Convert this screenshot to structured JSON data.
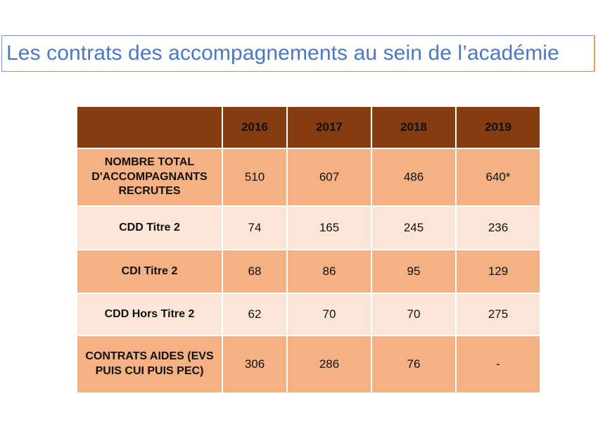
{
  "title": "Les contrats des accompagnements au sein de l’académie",
  "table": {
    "corner": "",
    "years": [
      "2016",
      "2017",
      "2018",
      "2019"
    ],
    "rows": [
      {
        "label": "NOMBRE TOTAL D'ACCOMPAGNANTS RECRUTES",
        "values": [
          "510",
          "607",
          "486",
          "640*"
        ],
        "shade": "dark"
      },
      {
        "label": "CDD Titre 2",
        "values": [
          "74",
          "165",
          "245",
          "236"
        ],
        "shade": "light"
      },
      {
        "label": "CDI Titre 2",
        "values": [
          "68",
          "86",
          "95",
          "129"
        ],
        "shade": "dark"
      },
      {
        "label": "CDD Hors Titre 2",
        "values": [
          "62",
          "70",
          "70",
          "275"
        ],
        "shade": "light"
      },
      {
        "label": "CONTRATS AIDES (EVS PUIS CUI PUIS PEC)",
        "values": [
          "306",
          "286",
          "76",
          "-"
        ],
        "shade": "dark"
      }
    ]
  },
  "colors": {
    "header": "#843c10",
    "row_dark": "#f4b183",
    "row_light": "#fbe5d6",
    "title_text": "#4b78c0"
  }
}
